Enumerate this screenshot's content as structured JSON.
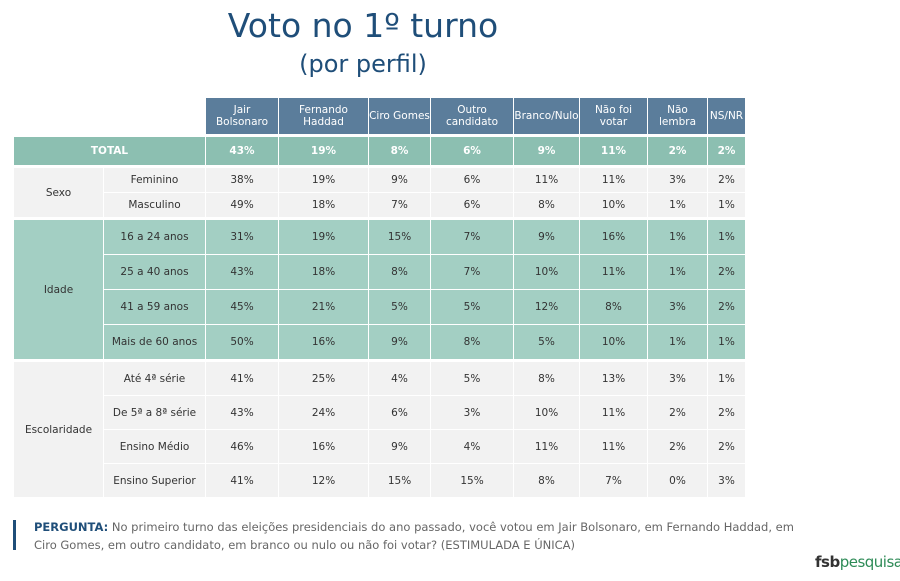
{
  "title": "Voto no 1º turno",
  "subtitle": "(por perfil)",
  "table": {
    "headers": [
      "Jair Bolsonaro",
      "Fernando Haddad",
      "Ciro Gomes",
      "Outro candidato",
      "Branco/Nulo",
      "Não foi votar",
      "Não lembra",
      "NS/NR"
    ],
    "total": {
      "label": "TOTAL",
      "values": [
        "43%",
        "19%",
        "8%",
        "6%",
        "9%",
        "11%",
        "2%",
        "2%"
      ]
    },
    "groups": [
      {
        "label": "Sexo",
        "rows": [
          {
            "label": "Feminino",
            "values": [
              "38%",
              "19%",
              "9%",
              "6%",
              "11%",
              "11%",
              "3%",
              "2%"
            ]
          },
          {
            "label": "Masculino",
            "values": [
              "49%",
              "18%",
              "7%",
              "6%",
              "8%",
              "10%",
              "1%",
              "1%"
            ]
          }
        ]
      },
      {
        "label": "Idade",
        "rows": [
          {
            "label": "16 a 24 anos",
            "values": [
              "31%",
              "19%",
              "15%",
              "7%",
              "9%",
              "16%",
              "1%",
              "1%"
            ]
          },
          {
            "label": "25 a 40 anos",
            "values": [
              "43%",
              "18%",
              "8%",
              "7%",
              "10%",
              "11%",
              "1%",
              "2%"
            ]
          },
          {
            "label": "41 a 59 anos",
            "values": [
              "45%",
              "21%",
              "5%",
              "5%",
              "12%",
              "8%",
              "3%",
              "2%"
            ]
          },
          {
            "label": "Mais de 60 anos",
            "values": [
              "50%",
              "16%",
              "9%",
              "8%",
              "5%",
              "10%",
              "1%",
              "1%"
            ]
          }
        ]
      },
      {
        "label": "Escolaridade",
        "rows": [
          {
            "label": "Até 4ª série",
            "values": [
              "41%",
              "25%",
              "4%",
              "5%",
              "8%",
              "13%",
              "3%",
              "1%"
            ]
          },
          {
            "label": "De 5ª a 8ª série",
            "values": [
              "43%",
              "24%",
              "6%",
              "3%",
              "10%",
              "11%",
              "2%",
              "2%"
            ]
          },
          {
            "label": "Ensino Médio",
            "values": [
              "46%",
              "16%",
              "9%",
              "4%",
              "11%",
              "11%",
              "2%",
              "2%"
            ]
          },
          {
            "label": "Ensino Superior",
            "values": [
              "41%",
              "12%",
              "15%",
              "15%",
              "8%",
              "7%",
              "0%",
              "3%"
            ]
          }
        ]
      }
    ]
  },
  "footer": {
    "label": "PERGUNTA:",
    "text": "No primeiro turno das eleições presidenciais do ano passado, você votou em Jair Bolsonaro, em Fernando Haddad, em Ciro Gomes, em outro candidato, em branco ou nulo ou não foi votar? (ESTIMULADA E ÚNICA)"
  },
  "logo": {
    "brand": "fsb",
    "suffix": "pesquisa"
  }
}
